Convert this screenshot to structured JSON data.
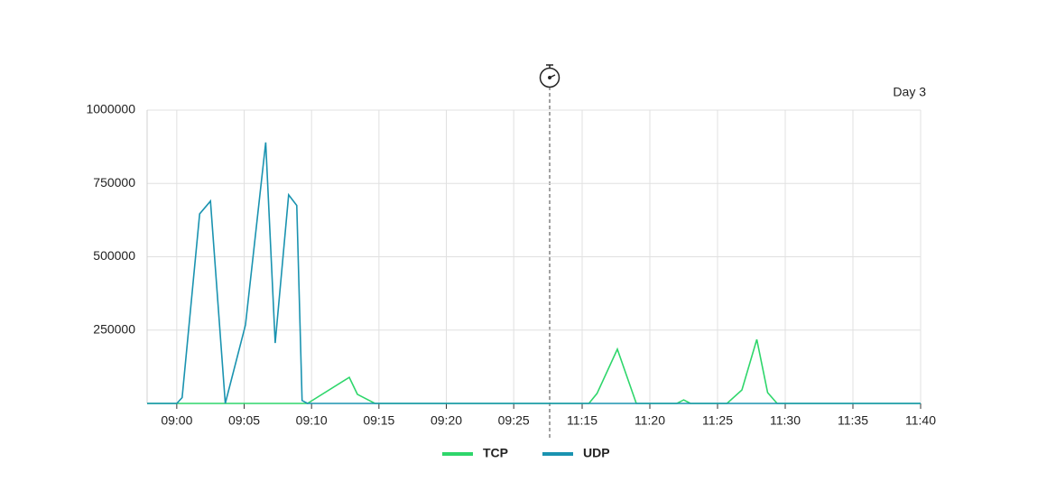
{
  "chart_data": {
    "type": "line",
    "annotation": "Day 3",
    "x": [
      "08:57:48",
      "09:00:00",
      "09:00:24",
      "09:01:42",
      "09:02:30",
      "09:03:36",
      "09:05:06",
      "09:06:36",
      "09:07:18",
      "09:08:18",
      "09:08:54",
      "09:09:18",
      "09:09:42",
      "09:12:48",
      "09:13:24",
      "09:14:42",
      "09:27:40",
      "11:12:36",
      "11:15:30",
      "11:16:06",
      "11:17:36",
      "11:19:00",
      "11:22:00",
      "11:22:30",
      "11:23:00",
      "11:25:42",
      "11:26:48",
      "11:27:54",
      "11:28:42",
      "11:29:24",
      "11:40:00"
    ],
    "series": [
      {
        "name": "TCP",
        "color": "#2ed66b",
        "values": [
          0,
          0,
          0,
          0,
          0,
          0,
          0,
          0,
          0,
          0,
          0,
          0,
          0,
          89000,
          31000,
          0,
          0,
          0,
          0,
          34000,
          185000,
          0,
          0,
          12000,
          0,
          0,
          46000,
          218000,
          37000,
          0,
          0
        ]
      },
      {
        "name": "UDP",
        "color": "#1a93b0",
        "values": [
          0,
          0,
          20000,
          646000,
          690000,
          0,
          268000,
          890000,
          206000,
          711000,
          675000,
          10000,
          0,
          0,
          0,
          0,
          0,
          0,
          0,
          0,
          0,
          0,
          0,
          0,
          0,
          0,
          0,
          0,
          0,
          0,
          0
        ]
      }
    ],
    "xlim": [
      [
        "08:57:48",
        "09:27:40"
      ],
      [
        "11:12:36",
        "11:40:00"
      ]
    ],
    "xticks": [
      "09:00",
      "09:05",
      "09:10",
      "09:15",
      "09:20",
      "09:25",
      "11:15",
      "11:20",
      "11:25",
      "11:30",
      "11:35",
      "11:40"
    ],
    "ylim": [
      0,
      1000000
    ],
    "yticks": [
      250000,
      500000,
      750000,
      1000000
    ],
    "grid": true
  }
}
